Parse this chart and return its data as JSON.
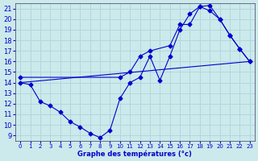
{
  "xlabel": "Graphe des températures (°c)",
  "xlim": [
    -0.5,
    23.5
  ],
  "ylim": [
    8.5,
    21.5
  ],
  "yticks": [
    9,
    10,
    11,
    12,
    13,
    14,
    15,
    16,
    17,
    18,
    19,
    20,
    21
  ],
  "xticks": [
    0,
    1,
    2,
    3,
    4,
    5,
    6,
    7,
    8,
    9,
    10,
    11,
    12,
    13,
    14,
    15,
    16,
    17,
    18,
    19,
    20,
    21,
    22,
    23
  ],
  "bg_color": "#cce9ec",
  "line_color": "#0000cc",
  "grid_color": "#b0d8dc",
  "line_straight": {
    "x": [
      0,
      23
    ],
    "y": [
      14.0,
      16.0
    ]
  },
  "line_upper": {
    "x": [
      0,
      10,
      11,
      12,
      13,
      15,
      16,
      17,
      18,
      19,
      20,
      21,
      22,
      23
    ],
    "y": [
      14.5,
      14.5,
      15.0,
      16.5,
      17.0,
      17.5,
      19.5,
      19.5,
      21.2,
      21.3,
      20.0,
      18.5,
      17.2,
      16.0
    ]
  },
  "line_lower": {
    "x": [
      0,
      1,
      2,
      3,
      4,
      5,
      6,
      7,
      8,
      9,
      10,
      11,
      12,
      13,
      14,
      15,
      16,
      17,
      18,
      19,
      20,
      21,
      22,
      23
    ],
    "y": [
      14.0,
      13.8,
      12.2,
      11.8,
      11.2,
      10.3,
      9.8,
      9.2,
      8.8,
      9.5,
      12.5,
      14.0,
      14.5,
      16.5,
      14.2,
      16.5,
      19.0,
      20.5,
      21.2,
      20.8,
      20.0,
      18.5,
      17.2,
      16.0
    ]
  }
}
